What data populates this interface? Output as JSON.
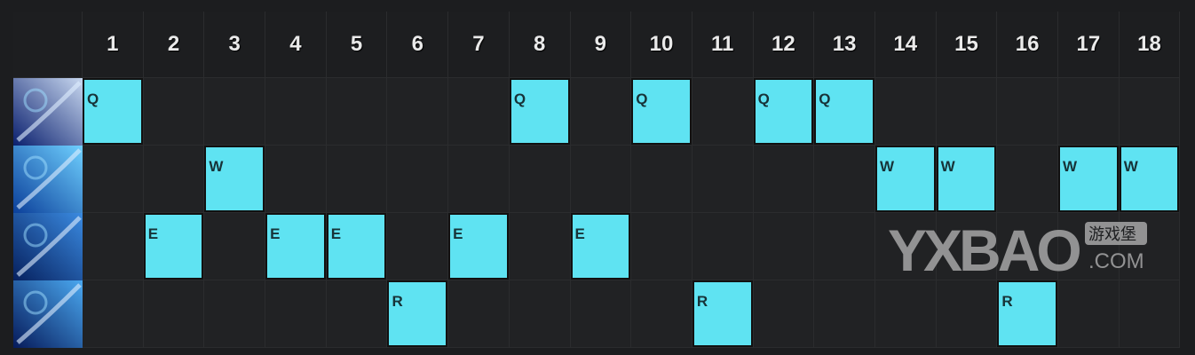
{
  "levels": [
    "1",
    "2",
    "3",
    "4",
    "5",
    "6",
    "7",
    "8",
    "9",
    "10",
    "11",
    "12",
    "13",
    "14",
    "15",
    "16",
    "17",
    "18"
  ],
  "skills": [
    {
      "key": "Q",
      "icon": "blade-ability-icon",
      "levels": [
        1,
        8,
        10,
        12,
        13
      ]
    },
    {
      "key": "W",
      "icon": "wind-swirl-ability-icon",
      "levels": [
        3,
        14,
        15,
        17,
        18
      ]
    },
    {
      "key": "E",
      "icon": "dash-ability-icon",
      "levels": [
        2,
        4,
        5,
        7,
        9
      ]
    },
    {
      "key": "R",
      "icon": "ultimate-ability-icon",
      "levels": [
        6,
        11,
        16
      ]
    }
  ],
  "colors": {
    "accent": "#5fe3f2",
    "background": "#1c1d1f"
  },
  "watermark": {
    "brand": "YXBAO",
    "cn": "游戏堡",
    "domain": ".COM"
  }
}
